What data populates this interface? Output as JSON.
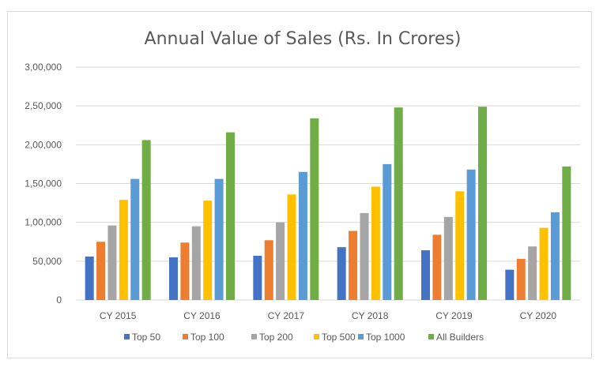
{
  "colors": {
    "series": [
      "#4472C4",
      "#ED7D31",
      "#A5A5A5",
      "#FFC000",
      "#5B9BD5",
      "#70AD47"
    ],
    "gridline": "#d9d9d9",
    "text": "#595959"
  },
  "chart_data": {
    "type": "bar",
    "title": "Annual Value of Sales (Rs. In Crores)",
    "xlabel": "",
    "ylabel": "",
    "ylim": [
      0,
      300000
    ],
    "y_ticks": [
      0,
      50000,
      100000,
      150000,
      200000,
      250000,
      300000
    ],
    "y_tick_labels": [
      "0",
      "50,000",
      "1,00,000",
      "1,50,000",
      "2,00,000",
      "2,50,000",
      "3,00,000"
    ],
    "grid": true,
    "legend_position": "bottom",
    "categories": [
      "CY 2015",
      "CY 2016",
      "CY 2017",
      "CY 2018",
      "CY 2019",
      "CY 2020"
    ],
    "series": [
      {
        "name": "Top 50",
        "values": [
          56000,
          55000,
          57000,
          68000,
          64000,
          39000
        ]
      },
      {
        "name": "Top 100",
        "values": [
          75000,
          74000,
          77000,
          89000,
          84000,
          53000
        ]
      },
      {
        "name": "Top 200",
        "values": [
          96000,
          95000,
          100000,
          112000,
          107000,
          69000
        ]
      },
      {
        "name": "Top 500",
        "values": [
          129000,
          128000,
          136000,
          146000,
          140000,
          93000
        ]
      },
      {
        "name": "Top 1000",
        "values": [
          156000,
          156000,
          165000,
          175000,
          168000,
          113000
        ]
      },
      {
        "name": "All Builders",
        "values": [
          206000,
          216000,
          234000,
          248000,
          249000,
          172000
        ]
      }
    ]
  }
}
